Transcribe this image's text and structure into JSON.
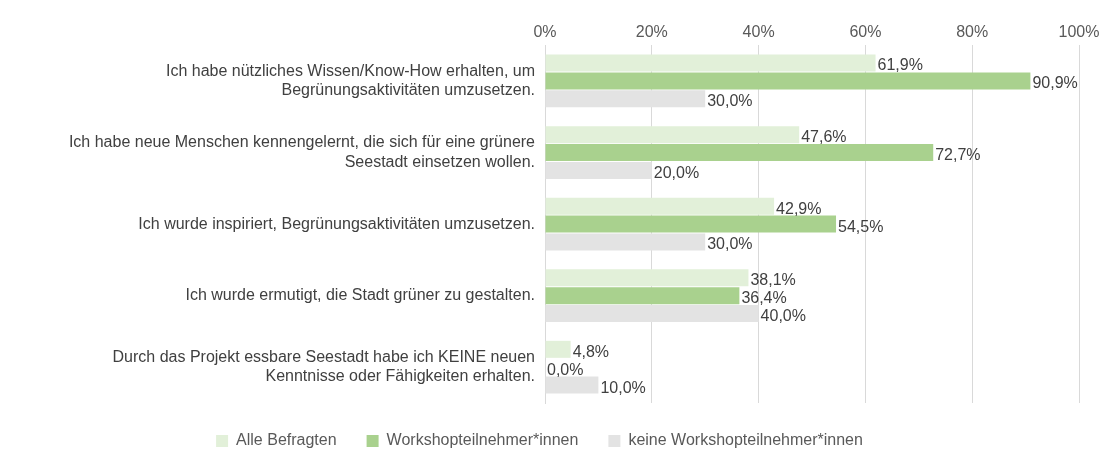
{
  "chart_data": {
    "type": "bar",
    "orientation": "horizontal",
    "categories": [
      "Ich habe nützliches Wissen/Know-How erhalten, um Begrünungsaktivitäten umzusetzen.",
      "Ich habe neue Menschen kennengelernt, die sich für eine grünere Seestadt einsetzen wollen.",
      "Ich wurde inspiriert, Begrünungsaktivitäten umzusetzen.",
      "Ich wurde ermutigt, die Stadt grüner zu gestalten.",
      "Durch das Projekt essbare Seestadt habe ich KEINE neuen Kenntnisse oder Fähigkeiten erhalten."
    ],
    "series": [
      {
        "name": "Alle Befragten",
        "color": "#e2f0d9",
        "values": [
          61.9,
          47.6,
          42.9,
          38.1,
          4.8
        ],
        "value_labels": [
          "61,9%",
          "47,6%",
          "42,9%",
          "38,1%",
          "4,8%"
        ]
      },
      {
        "name": "Workshopteilnehmer*innen",
        "color": "#a9d18e",
        "values": [
          90.9,
          72.7,
          54.5,
          36.4,
          0
        ],
        "value_labels": [
          "90,9%",
          "72,7%",
          "54,5%",
          "36,4%",
          "0,0%"
        ]
      },
      {
        "name": "keine Workshopteilnehmer*innen",
        "color": "#e3e3e3",
        "values": [
          30,
          20,
          30,
          40,
          10
        ],
        "value_labels": [
          "30,0%",
          "20,0%",
          "30,0%",
          "40,0%",
          "10,0%"
        ]
      }
    ],
    "xlim": [
      0,
      100
    ],
    "xticks": [
      {
        "value": 0,
        "label": "0%"
      },
      {
        "value": 20,
        "label": "20%"
      },
      {
        "value": 40,
        "label": "40%"
      },
      {
        "value": 60,
        "label": "60%"
      },
      {
        "value": 80,
        "label": "80%"
      },
      {
        "value": 100,
        "label": "100%"
      }
    ],
    "grid": "x",
    "legend": "bottom"
  }
}
